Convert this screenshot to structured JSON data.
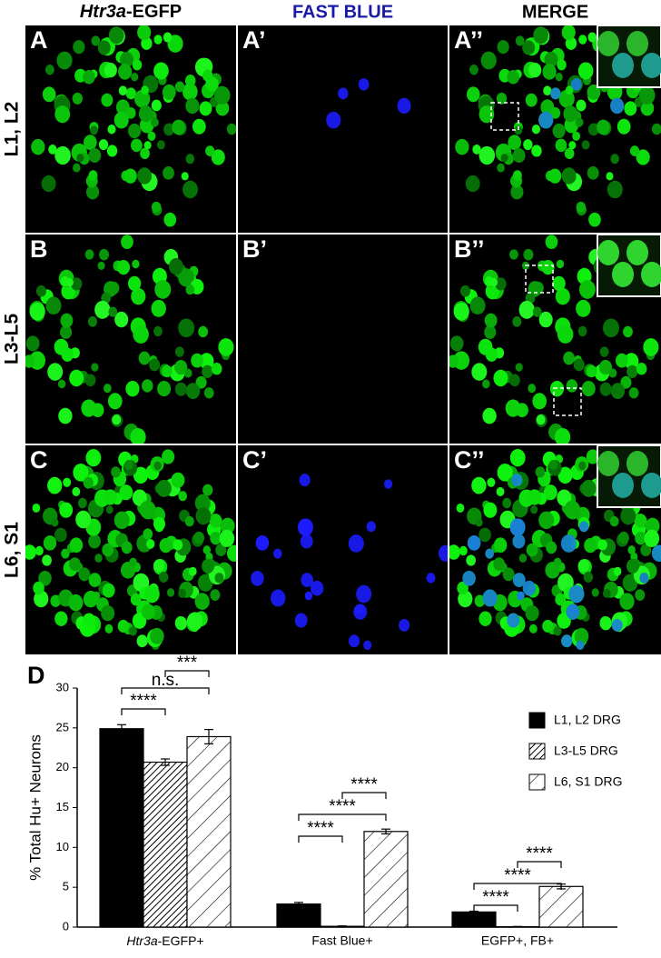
{
  "figure": {
    "column_headers": [
      "Htr3a-EGFP",
      "FAST BLUE",
      "MERGE"
    ],
    "row_labels": [
      "L1, L2",
      "L3-L5",
      "L6, S1"
    ],
    "panel_labels": [
      [
        "A",
        "A’",
        "A’’"
      ],
      [
        "B",
        "B’",
        "B’’"
      ],
      [
        "C",
        "C’",
        "C’’"
      ]
    ]
  },
  "chart_data": {
    "type": "bar",
    "panel_label": "D",
    "ylabel": "% Total Hu+ Neurons",
    "categories": [
      "Htr3a-EGFP+",
      "Fast Blue+",
      "EGFP+, FB+"
    ],
    "series": [
      {
        "name": "L1, L2 DRG",
        "color": "#000000",
        "hatch": "none",
        "values": [
          24.9,
          2.9,
          1.9
        ],
        "errors": [
          0.5,
          0.2,
          0.1
        ]
      },
      {
        "name": "L3-L5 DRG",
        "color": "#000000",
        "hatch": "dense",
        "values": [
          20.7,
          0.1,
          0.05
        ],
        "errors": [
          0.4,
          0.05,
          0.03
        ]
      },
      {
        "name": "L6, S1 DRG",
        "color": "#000000",
        "hatch": "sparse",
        "values": [
          23.9,
          12.0,
          5.1
        ],
        "errors": [
          0.9,
          0.3,
          0.3
        ]
      }
    ],
    "annotations": [
      "****",
      "n.s.",
      "***",
      "****",
      "****",
      "****",
      "****",
      "****",
      "****"
    ],
    "ylim": [
      0,
      30
    ],
    "yticks": [
      0,
      5,
      10,
      15,
      20,
      25,
      30
    ],
    "grid": false
  }
}
